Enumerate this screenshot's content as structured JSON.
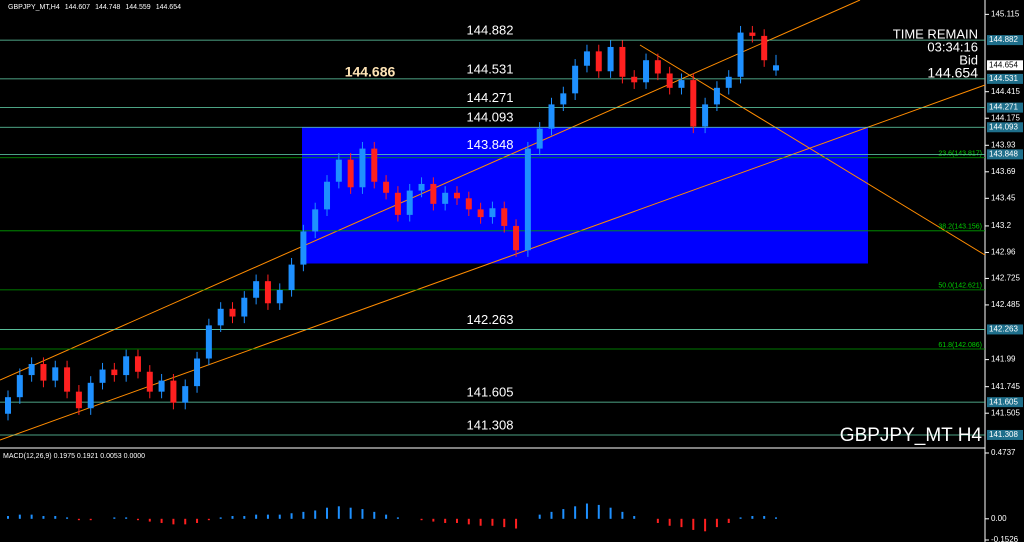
{
  "chart_data": {
    "type": "candlestick",
    "header": {
      "symbol": "GBPJPY_MT,H4"
    },
    "symbol_label": "GBPJPY_MT H4",
    "up_color": "#1e90ff",
    "down_color": "#ff2020",
    "ylim": [
      141.19,
      145.245
    ],
    "yticks": [
      145.115,
      144.415,
      144.175,
      143.93,
      143.69,
      143.45,
      143.2,
      142.96,
      142.725,
      142.485,
      141.99,
      141.745,
      141.505
    ],
    "open": [
      141.5,
      141.65,
      141.85,
      141.95,
      141.8,
      141.92,
      141.7,
      141.55,
      141.78,
      141.9,
      141.85,
      142.02,
      141.88,
      141.7,
      141.8,
      141.6,
      141.75,
      142.0,
      142.3,
      142.45,
      142.38,
      142.55,
      142.7,
      142.5,
      142.62,
      142.85,
      143.15,
      143.35,
      143.6,
      143.8,
      143.55,
      143.9,
      143.6,
      143.5,
      143.3,
      143.52,
      143.58,
      143.4,
      143.5,
      143.45,
      143.35,
      143.28,
      143.36,
      143.2,
      142.98,
      143.9,
      144.08,
      144.3,
      144.4,
      144.65,
      144.78,
      144.6,
      144.82,
      144.55,
      144.5,
      144.7,
      144.58,
      144.45,
      144.52,
      144.1,
      144.3,
      144.45,
      144.55,
      144.95,
      144.92,
      144.607
    ],
    "high": [
      141.71,
      141.91,
      142.01,
      142.01,
      141.98,
      141.98,
      141.76,
      141.84,
      141.96,
      141.96,
      142.08,
      142.08,
      141.94,
      141.86,
      141.86,
      141.81,
      142.06,
      142.36,
      142.51,
      142.51,
      142.61,
      142.76,
      142.76,
      142.68,
      142.91,
      143.21,
      143.41,
      143.66,
      143.86,
      143.86,
      143.96,
      143.96,
      143.66,
      143.56,
      143.58,
      143.64,
      143.64,
      143.56,
      143.56,
      143.51,
      143.41,
      143.42,
      143.42,
      143.26,
      143.96,
      144.14,
      144.36,
      144.46,
      144.71,
      144.84,
      144.84,
      144.88,
      144.88,
      144.61,
      144.76,
      144.76,
      144.64,
      144.58,
      144.58,
      144.36,
      144.51,
      144.61,
      145.01,
      145.01,
      144.98,
      144.748
    ],
    "low": [
      141.44,
      141.59,
      141.79,
      141.74,
      141.74,
      141.64,
      141.49,
      141.49,
      141.72,
      141.79,
      141.79,
      141.82,
      141.64,
      141.64,
      141.54,
      141.54,
      141.69,
      141.94,
      142.24,
      142.32,
      142.32,
      142.49,
      142.44,
      142.44,
      142.56,
      142.79,
      143.09,
      143.29,
      143.54,
      143.49,
      143.49,
      143.54,
      143.44,
      143.24,
      143.24,
      143.46,
      143.34,
      143.34,
      143.39,
      143.29,
      143.22,
      143.22,
      143.14,
      142.92,
      142.92,
      143.84,
      144.02,
      144.24,
      144.34,
      144.59,
      144.54,
      144.54,
      144.49,
      144.44,
      144.44,
      144.52,
      144.39,
      144.39,
      144.04,
      144.04,
      144.24,
      144.39,
      144.49,
      144.86,
      144.64,
      144.559
    ],
    "close": [
      141.65,
      141.85,
      141.95,
      141.8,
      141.92,
      141.7,
      141.55,
      141.78,
      141.9,
      141.85,
      142.02,
      141.88,
      141.7,
      141.8,
      141.6,
      141.75,
      142.0,
      142.3,
      142.45,
      142.38,
      142.55,
      142.7,
      142.5,
      142.62,
      142.85,
      143.15,
      143.35,
      143.6,
      143.8,
      143.55,
      143.9,
      143.6,
      143.5,
      143.3,
      143.52,
      143.58,
      143.4,
      143.5,
      143.45,
      143.35,
      143.28,
      143.36,
      143.2,
      142.98,
      143.9,
      144.08,
      144.3,
      144.4,
      144.65,
      144.78,
      144.6,
      144.82,
      144.55,
      144.5,
      144.7,
      144.58,
      144.45,
      144.52,
      144.1,
      144.3,
      144.45,
      144.55,
      144.95,
      144.92,
      144.7,
      144.654
    ],
    "levels": [
      144.882,
      144.531,
      144.271,
      144.093,
      143.848,
      142.263,
      141.605,
      141.308
    ],
    "highlight_label": 144.686,
    "fib": [
      {
        "value": 143.817,
        "label": "23.6(143.817)"
      },
      {
        "value": 143.156,
        "label": "38.2(143.156)"
      },
      {
        "value": 142.621,
        "label": "50.0(142.621)"
      },
      {
        "value": 142.086,
        "label": "61.8(142.086)"
      }
    ],
    "zone": {
      "top": 144.093,
      "bottom": 142.86
    },
    "time_remain": {
      "label": "TIME REMAIN",
      "time": "03:34:16",
      "bid_label": "Bid",
      "bid": 144.654
    },
    "macd": {
      "title": "MACD(12,26,9) 0.1975 0.1921 0.0053 0.0000",
      "ylim": [
        -0.1526,
        0.4737
      ],
      "yticks": [
        0.4737,
        {
          "value": 0,
          "label": "0.00"
        },
        -0.1526
      ],
      "histogram": [
        0.02,
        0.03,
        0.03,
        0.02,
        0.02,
        0.01,
        -0.01,
        -0.01,
        0.0,
        0.01,
        0.01,
        -0.01,
        -0.02,
        -0.03,
        -0.04,
        -0.04,
        -0.03,
        -0.01,
        0.01,
        0.02,
        0.02,
        0.03,
        0.03,
        0.03,
        0.04,
        0.05,
        0.06,
        0.08,
        0.09,
        0.08,
        0.07,
        0.05,
        0.03,
        0.01,
        0.0,
        -0.01,
        -0.02,
        -0.03,
        -0.03,
        -0.04,
        -0.05,
        -0.05,
        -0.06,
        -0.07,
        0.0,
        0.03,
        0.05,
        0.07,
        0.09,
        0.11,
        0.1,
        0.08,
        0.05,
        0.02,
        0.0,
        -0.03,
        -0.05,
        -0.06,
        -0.08,
        -0.09,
        -0.06,
        -0.03,
        0.01,
        0.02,
        0.02,
        0.01
      ]
    }
  }
}
